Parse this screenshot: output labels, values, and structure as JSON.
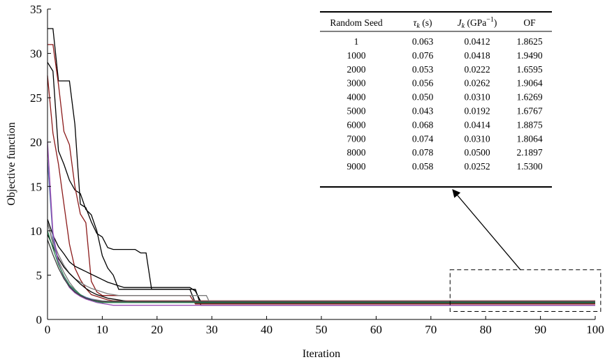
{
  "chart_data": {
    "type": "line",
    "xlabel": "Iteration",
    "ylabel": "Objective function",
    "xlim": [
      0,
      100
    ],
    "ylim": [
      0,
      35
    ],
    "xticks": [
      0,
      10,
      20,
      30,
      40,
      50,
      60,
      70,
      80,
      90,
      100
    ],
    "yticks": [
      0,
      5,
      10,
      15,
      20,
      25,
      30,
      35
    ],
    "grid": false,
    "legend": "none",
    "series": [
      {
        "color": "#000000",
        "points": [
          [
            0,
            32.8
          ],
          [
            1,
            32.8
          ],
          [
            2,
            26.9
          ],
          [
            3,
            26.9
          ],
          [
            4,
            26.9
          ],
          [
            5,
            22.0
          ],
          [
            6,
            13.0
          ],
          [
            7,
            12.6
          ],
          [
            8,
            11.0
          ],
          [
            9,
            9.7
          ],
          [
            10,
            9.3
          ],
          [
            11,
            8.1
          ],
          [
            12,
            7.9
          ],
          [
            16,
            7.9
          ],
          [
            17,
            7.5
          ],
          [
            18,
            7.5
          ],
          [
            19,
            3.4
          ],
          [
            27,
            3.4
          ],
          [
            28,
            1.6
          ],
          [
            100,
            1.6
          ]
        ]
      },
      {
        "color": "#000000",
        "points": [
          [
            0,
            29.0
          ],
          [
            1,
            28.0
          ],
          [
            2,
            19.0
          ],
          [
            3,
            17.5
          ],
          [
            4,
            15.7
          ],
          [
            5,
            14.6
          ],
          [
            6,
            14.2
          ],
          [
            7,
            12.4
          ],
          [
            8,
            11.8
          ],
          [
            9,
            10.0
          ],
          [
            10,
            7.2
          ],
          [
            11,
            5.8
          ],
          [
            12,
            5.0
          ],
          [
            13,
            3.4
          ],
          [
            26,
            3.4
          ],
          [
            27,
            1.85
          ],
          [
            100,
            1.85
          ]
        ]
      },
      {
        "color": "#8b1a1a",
        "points": [
          [
            0,
            31.0
          ],
          [
            1,
            31.0
          ],
          [
            2,
            26.5
          ],
          [
            3,
            21.2
          ],
          [
            4,
            19.7
          ],
          [
            5,
            15.0
          ],
          [
            6,
            11.9
          ],
          [
            7,
            10.9
          ],
          [
            8,
            4.3
          ],
          [
            9,
            3.1
          ],
          [
            10,
            2.7
          ],
          [
            26,
            2.7
          ],
          [
            27,
            1.75
          ],
          [
            100,
            1.75
          ]
        ]
      },
      {
        "color": "#8b1a1a",
        "points": [
          [
            0,
            27.5
          ],
          [
            1,
            21.0
          ],
          [
            2,
            17.5
          ],
          [
            3,
            13.0
          ],
          [
            4,
            8.5
          ],
          [
            5,
            5.8
          ],
          [
            6,
            4.5
          ],
          [
            7,
            3.5
          ],
          [
            8,
            2.8
          ],
          [
            9,
            2.6
          ],
          [
            10,
            2.4
          ],
          [
            11,
            2.2
          ],
          [
            12,
            2.1
          ],
          [
            100,
            2.1
          ]
        ]
      },
      {
        "color": "#000000",
        "points": [
          [
            0,
            11.3
          ],
          [
            1,
            9.5
          ],
          [
            2,
            8.2
          ],
          [
            3,
            7.4
          ],
          [
            4,
            6.5
          ],
          [
            5,
            6.0
          ],
          [
            6,
            5.7
          ],
          [
            7,
            5.4
          ],
          [
            8,
            5.1
          ],
          [
            9,
            4.8
          ],
          [
            10,
            4.5
          ],
          [
            11,
            4.2
          ],
          [
            12,
            4.0
          ],
          [
            13,
            3.8
          ],
          [
            14,
            3.6
          ],
          [
            15,
            3.6
          ],
          [
            26,
            3.6
          ],
          [
            27,
            3.2
          ],
          [
            28,
            2.0
          ],
          [
            100,
            2.0
          ]
        ]
      },
      {
        "color": "#7a7a7a",
        "points": [
          [
            0,
            10.8
          ],
          [
            1,
            8.8
          ],
          [
            2,
            7.3
          ],
          [
            3,
            6.1
          ],
          [
            4,
            5.2
          ],
          [
            5,
            4.6
          ],
          [
            6,
            4.2
          ],
          [
            7,
            3.8
          ],
          [
            8,
            3.5
          ],
          [
            9,
            3.3
          ],
          [
            10,
            3.1
          ],
          [
            11,
            2.9
          ],
          [
            12,
            2.8
          ],
          [
            13,
            2.7
          ],
          [
            29,
            2.7
          ],
          [
            29.5,
            2.05
          ],
          [
            100,
            2.05
          ]
        ]
      },
      {
        "color": "#000000",
        "points": [
          [
            0,
            9.6
          ],
          [
            1,
            8.2
          ],
          [
            2,
            6.9
          ],
          [
            3,
            5.9
          ],
          [
            4,
            5.2
          ],
          [
            5,
            4.6
          ],
          [
            6,
            4.0
          ],
          [
            7,
            3.5
          ],
          [
            8,
            3.1
          ],
          [
            9,
            2.8
          ],
          [
            10,
            2.6
          ],
          [
            11,
            2.4
          ],
          [
            12,
            2.3
          ],
          [
            13,
            2.2
          ],
          [
            14,
            2.1
          ],
          [
            15,
            2.0
          ],
          [
            16,
            1.95
          ],
          [
            100,
            1.95
          ]
        ]
      },
      {
        "color": "#7a7a7a",
        "points": [
          [
            0,
            11.0
          ],
          [
            1,
            8.5
          ],
          [
            2,
            6.6
          ],
          [
            3,
            5.3
          ],
          [
            4,
            4.2
          ],
          [
            5,
            3.4
          ],
          [
            6,
            2.8
          ],
          [
            7,
            2.5
          ],
          [
            8,
            2.3
          ],
          [
            9,
            2.2
          ],
          [
            10,
            2.1
          ],
          [
            11,
            2.05
          ],
          [
            100,
            2.05
          ]
        ]
      },
      {
        "color": "#5a6fae",
        "points": [
          [
            0,
            18.0
          ],
          [
            1,
            9.2
          ],
          [
            2,
            6.3
          ],
          [
            3,
            4.8
          ],
          [
            4,
            3.8
          ],
          [
            5,
            3.2
          ],
          [
            6,
            2.8
          ],
          [
            7,
            2.5
          ],
          [
            8,
            2.3
          ],
          [
            9,
            2.1
          ],
          [
            10,
            2.0
          ],
          [
            100,
            2.0
          ]
        ]
      },
      {
        "color": "#9b4db5",
        "points": [
          [
            0,
            20.0
          ],
          [
            1,
            9.8
          ],
          [
            2,
            6.4
          ],
          [
            3,
            4.7
          ],
          [
            4,
            3.6
          ],
          [
            5,
            3.0
          ],
          [
            6,
            2.6
          ],
          [
            7,
            2.3
          ],
          [
            8,
            2.1
          ],
          [
            9,
            1.9
          ],
          [
            10,
            1.8
          ],
          [
            11,
            1.7
          ],
          [
            12,
            1.6
          ],
          [
            100,
            1.6
          ]
        ]
      },
      {
        "color": "#2f8b57",
        "points": [
          [
            0,
            10.0
          ],
          [
            1,
            8.0
          ],
          [
            2,
            6.2
          ],
          [
            3,
            4.9
          ],
          [
            4,
            3.9
          ],
          [
            5,
            3.3
          ],
          [
            6,
            2.8
          ],
          [
            7,
            2.4
          ],
          [
            8,
            2.2
          ],
          [
            9,
            2.0
          ],
          [
            10,
            1.9
          ],
          [
            100,
            1.9
          ]
        ]
      },
      {
        "color": "#3c3c3c",
        "points": [
          [
            0,
            9.0
          ],
          [
            1,
            7.3
          ],
          [
            2,
            5.8
          ],
          [
            3,
            4.6
          ],
          [
            4,
            3.7
          ],
          [
            5,
            3.1
          ],
          [
            6,
            2.7
          ],
          [
            7,
            2.4
          ],
          [
            8,
            2.2
          ],
          [
            9,
            2.1
          ],
          [
            10,
            2.0
          ],
          [
            100,
            2.0
          ]
        ]
      }
    ],
    "zoom_box": {
      "x": [
        73.5,
        101
      ],
      "y": [
        0.9,
        5.6
      ]
    },
    "table": {
      "headers": [
        "Random Seed",
        "τ",
        "k",
        " (s)",
        "J",
        "k",
        " (GPa",
        "−1",
        ")",
        "OF"
      ],
      "rows": [
        [
          "1",
          "0.063",
          "0.0412",
          "1.8625"
        ],
        [
          "1000",
          "0.076",
          "0.0418",
          "1.9490"
        ],
        [
          "2000",
          "0.053",
          "0.0222",
          "1.6595"
        ],
        [
          "3000",
          "0.056",
          "0.0262",
          "1.9064"
        ],
        [
          "4000",
          "0.050",
          "0.0310",
          "1.6269"
        ],
        [
          "5000",
          "0.043",
          "0.0192",
          "1.6767"
        ],
        [
          "6000",
          "0.068",
          "0.0414",
          "1.8875"
        ],
        [
          "7000",
          "0.074",
          "0.0310",
          "1.8064"
        ],
        [
          "8000",
          "0.078",
          "0.0500",
          "2.1897"
        ],
        [
          "9000",
          "0.058",
          "0.0252",
          "1.5300"
        ]
      ]
    }
  }
}
